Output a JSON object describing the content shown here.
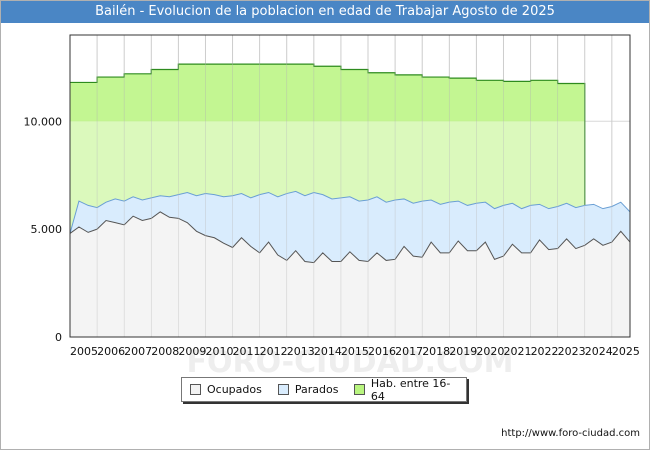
{
  "chart_data": {
    "type": "area",
    "title": "Bailén - Evolucion de la poblacion en edad de Trabajar Agosto de 2025",
    "xlabel": "",
    "ylabel": "",
    "ylim": [
      0,
      14000
    ],
    "xlim": [
      2005,
      2025.67
    ],
    "y_ticks": [
      {
        "value": 0,
        "label": "0"
      },
      {
        "value": 5000,
        "label": "5.000"
      },
      {
        "value": 10000,
        "label": "10.000"
      }
    ],
    "x_tick_labels": [
      "2005",
      "2006",
      "2007",
      "2008",
      "2009",
      "2010",
      "2011",
      "2012",
      "2013",
      "2014",
      "2015",
      "2016",
      "2017",
      "2018",
      "2019",
      "2020",
      "2021",
      "2022",
      "2023",
      "2024",
      "2025"
    ],
    "hab_end": 2024.0,
    "series": [
      {
        "name": "Hab. entre 16-64",
        "color": "#b9f57f",
        "x": [
          2005,
          2006,
          2007,
          2008,
          2009,
          2010,
          2011,
          2012,
          2013,
          2014,
          2015,
          2016,
          2017,
          2018,
          2019,
          2020,
          2021,
          2022,
          2023,
          2024
        ],
        "values": [
          11800,
          12050,
          12200,
          12400,
          12650,
          12650,
          12650,
          12650,
          12650,
          12550,
          12400,
          12250,
          12150,
          12050,
          12000,
          11900,
          11850,
          11900,
          11750,
          11750
        ]
      },
      {
        "name": "Parados",
        "color": "#d9ecfd",
        "x": [
          2005,
          2005.33,
          2005.67,
          2006,
          2006.33,
          2006.67,
          2007,
          2007.33,
          2007.67,
          2008,
          2008.33,
          2008.67,
          2009,
          2009.33,
          2009.67,
          2010,
          2010.33,
          2010.67,
          2011,
          2011.33,
          2011.67,
          2012,
          2012.33,
          2012.67,
          2013,
          2013.33,
          2013.67,
          2014,
          2014.33,
          2014.67,
          2015,
          2015.33,
          2015.67,
          2016,
          2016.33,
          2016.67,
          2017,
          2017.33,
          2017.67,
          2018,
          2018.33,
          2018.67,
          2019,
          2019.33,
          2019.67,
          2020,
          2020.33,
          2020.67,
          2021,
          2021.33,
          2021.67,
          2022,
          2022.33,
          2022.67,
          2023,
          2023.33,
          2023.67,
          2024,
          2024.33,
          2024.67,
          2025,
          2025.33,
          2025.67
        ],
        "values": [
          4800,
          6300,
          6100,
          6000,
          6250,
          6400,
          6300,
          6500,
          6350,
          6450,
          6550,
          6500,
          6600,
          6700,
          6550,
          6650,
          6600,
          6500,
          6550,
          6650,
          6450,
          6600,
          6700,
          6500,
          6650,
          6750,
          6550,
          6700,
          6600,
          6400,
          6450,
          6500,
          6300,
          6350,
          6500,
          6250,
          6350,
          6400,
          6200,
          6300,
          6350,
          6150,
          6250,
          6300,
          6100,
          6200,
          6250,
          5950,
          6100,
          6200,
          5950,
          6100,
          6150,
          5950,
          6050,
          6200,
          6000,
          6100,
          6150,
          5950,
          6050,
          6250,
          5800
        ]
      },
      {
        "name": "Ocupados",
        "color": "#f2f2f2",
        "x": [
          2005,
          2005.33,
          2005.67,
          2006,
          2006.33,
          2006.67,
          2007,
          2007.33,
          2007.67,
          2008,
          2008.33,
          2008.67,
          2009,
          2009.33,
          2009.67,
          2010,
          2010.33,
          2010.67,
          2011,
          2011.33,
          2011.67,
          2012,
          2012.33,
          2012.67,
          2013,
          2013.33,
          2013.67,
          2014,
          2014.33,
          2014.67,
          2015,
          2015.33,
          2015.67,
          2016,
          2016.33,
          2016.67,
          2017,
          2017.33,
          2017.67,
          2018,
          2018.33,
          2018.67,
          2019,
          2019.33,
          2019.67,
          2020,
          2020.33,
          2020.67,
          2021,
          2021.33,
          2021.67,
          2022,
          2022.33,
          2022.67,
          2023,
          2023.33,
          2023.67,
          2024,
          2024.33,
          2024.67,
          2025,
          2025.33,
          2025.67
        ],
        "values": [
          4800,
          5100,
          4850,
          5000,
          5400,
          5300,
          5200,
          5600,
          5400,
          5500,
          5800,
          5550,
          5500,
          5300,
          4900,
          4700,
          4600,
          4350,
          4150,
          4600,
          4200,
          3900,
          4400,
          3800,
          3550,
          4000,
          3500,
          3450,
          3900,
          3500,
          3500,
          3950,
          3550,
          3500,
          3900,
          3550,
          3600,
          4200,
          3750,
          3700,
          4400,
          3900,
          3900,
          4450,
          4000,
          4000,
          4400,
          3600,
          3750,
          4300,
          3900,
          3900,
          4500,
          4050,
          4100,
          4550,
          4100,
          4250,
          4550,
          4250,
          4400,
          4900,
          4400
        ]
      }
    ],
    "legend": [
      {
        "label": "Ocupados",
        "color": "#f2f2f2"
      },
      {
        "label": "Parados",
        "color": "#d9ecfd"
      },
      {
        "label": "Hab. entre 16-64",
        "color": "#b9f57f"
      }
    ],
    "watermark": "FORO-CIUDAD.COM",
    "source_url": "http://www.foro-ciudad.com"
  }
}
